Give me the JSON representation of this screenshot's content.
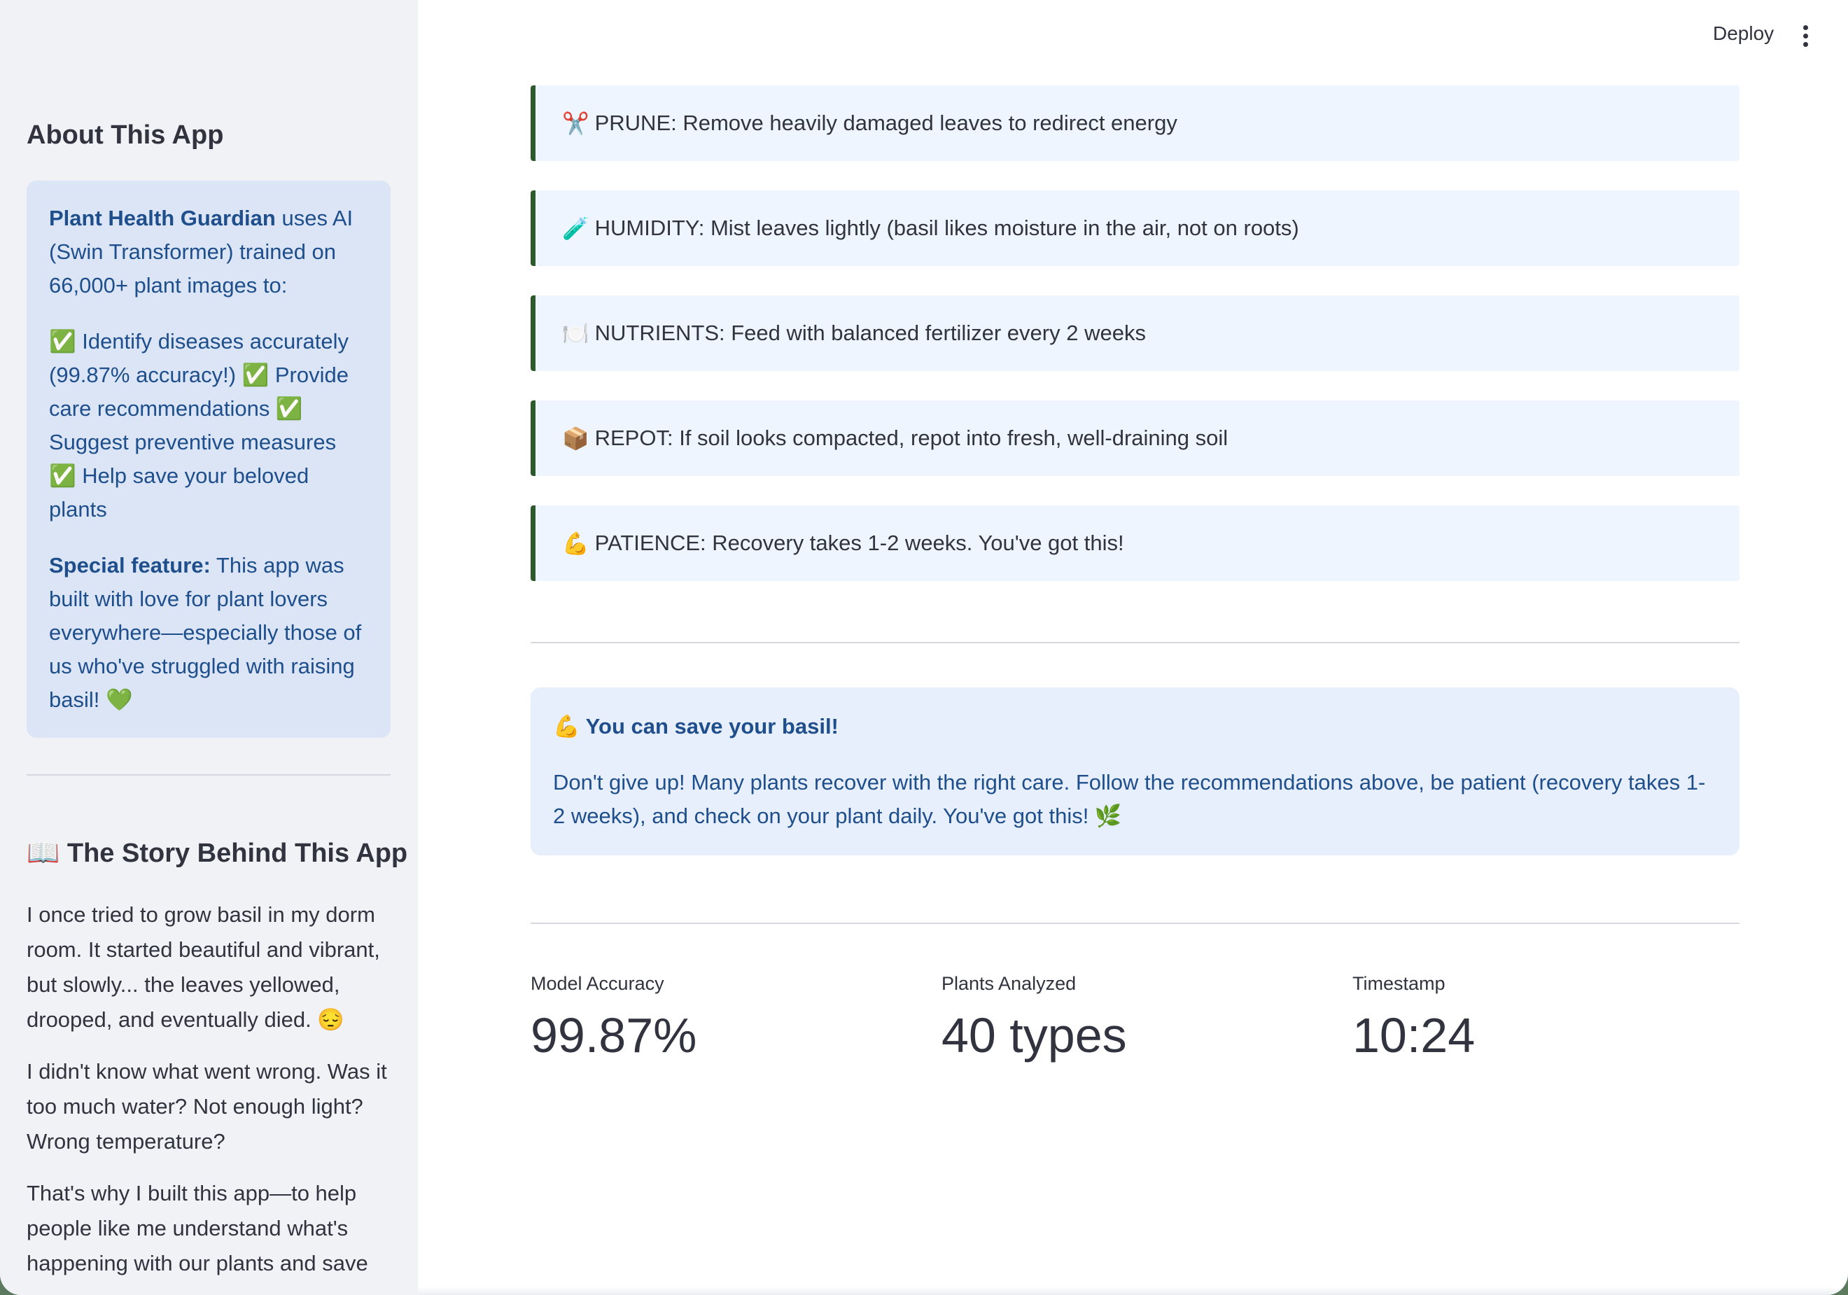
{
  "header": {
    "deploy_label": "Deploy"
  },
  "sidebar": {
    "about_title": "About This App",
    "about": {
      "app_name": "Plant Health Guardian",
      "intro_rest": " uses AI (Swin Transformer) trained on 66,000+ plant images to:",
      "features": "✅ Identify diseases accurately (99.87% accuracy!) ✅ Provide care recommendations ✅ Suggest preventive measures ✅ Help save your beloved plants",
      "special_label": "Special feature:",
      "special_text": " This app was built with love for plant lovers everywhere—especially those of us who've struggled with raising basil! 💚"
    },
    "story_title": "📖 The Story Behind This App",
    "story": [
      "I once tried to grow basil in my dorm room. It started beautiful and vibrant, but slowly... the leaves yellowed, drooped, and eventually died. 😔",
      "I didn't know what went wrong. Was it too much water? Not enough light? Wrong temperature?",
      "That's why I built this app—to help people like me understand what's happening with our plants and save"
    ]
  },
  "tips": [
    {
      "emoji": "✂️",
      "text": "PRUNE: Remove heavily damaged leaves to redirect energy"
    },
    {
      "emoji": "🧪",
      "text": "HUMIDITY: Mist leaves lightly (basil likes moisture in the air, not on roots)"
    },
    {
      "emoji": "🍽️",
      "text": "NUTRIENTS: Feed with balanced fertilizer every 2 weeks"
    },
    {
      "emoji": "📦",
      "text": "REPOT: If soil looks compacted, repot into fresh, well-draining soil"
    },
    {
      "emoji": "💪",
      "text": "PATIENCE: Recovery takes 1-2 weeks. You've got this!"
    }
  ],
  "encouragement": {
    "title": "💪 You can save your basil!",
    "body": "Don't give up! Many plants recover with the right care. Follow the recommendations above, be patient (recovery takes 1-2 weeks), and check on your plant daily. You've got this! 🌿"
  },
  "metrics": [
    {
      "label": "Model Accuracy",
      "value": "99.87%"
    },
    {
      "label": "Plants Analyzed",
      "value": "40 types"
    },
    {
      "label": "Timestamp",
      "value": "10:24"
    }
  ],
  "colors": {
    "sidebar_bg": "#f0f2f6",
    "info_bg": "#dbe5f5",
    "info_text": "#1e4f8c",
    "tip_border": "#2e5a2b",
    "tip_bg": "#eef5fe"
  }
}
